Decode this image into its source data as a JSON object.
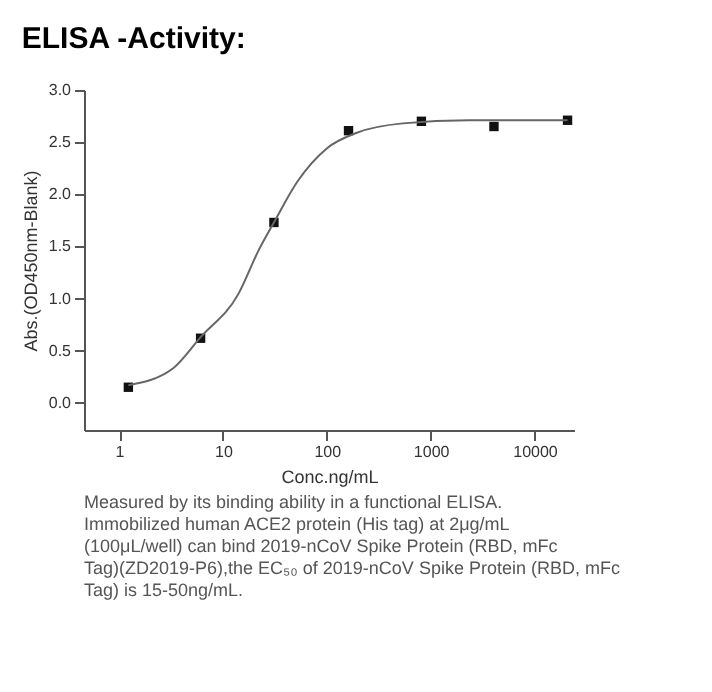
{
  "chart_data": {
    "type": "scatter",
    "title": "ELISA -Activity:",
    "xlabel": "Conc.ng/mL",
    "ylabel": "Abs.(OD450nm-Blank)",
    "log": "x",
    "grid": false,
    "xlim": [
      0.46,
      24000
    ],
    "xticks": [
      1,
      10,
      100,
      1000,
      10000
    ],
    "ylim": [
      -0.26,
      3.0
    ],
    "yticks": [
      {
        "value": 0,
        "label": "0.0"
      },
      {
        "value": 0.5,
        "label": "0.5"
      },
      {
        "value": 1,
        "label": "1.0"
      },
      {
        "value": 1.5,
        "label": "1.5"
      },
      {
        "value": 2,
        "label": "2.0"
      },
      {
        "value": 2.5,
        "label": "2.5"
      },
      {
        "value": 3,
        "label": "3.0"
      }
    ],
    "series": [
      {
        "marker": "square",
        "color": "#111111",
        "x": [
          1.23,
          6.1,
          31,
          162,
          815,
          4070,
          20800
        ],
        "values": [
          0.15,
          0.62,
          1.73,
          2.61,
          2.7,
          2.65,
          2.71
        ]
      },
      {
        "type": "line",
        "marker": "none",
        "line_style": "solid",
        "color": "#666666",
        "x": [
          1.23,
          3.3,
          6.1,
          14.2,
          22,
          31,
          52,
          100,
          195,
          540,
          2340,
          20800
        ],
        "values": [
          0.17,
          0.33,
          0.63,
          1.05,
          1.46,
          1.73,
          2.12,
          2.44,
          2.59,
          2.68,
          2.71,
          2.71
        ]
      }
    ],
    "annotations": [
      "Measured by its binding ability in a functional ELISA. Immobilized human ACE2 protein (His tag) at 2μg/mL (100μL/well) can bind 2019-nCoV Spike Protein (RBD, mFc Tag)(ZD2019-P6),the EC₅₀ of 2019-nCoV Spike Protein (RBD, mFc Tag) is 15-50ng/mL."
    ]
  }
}
